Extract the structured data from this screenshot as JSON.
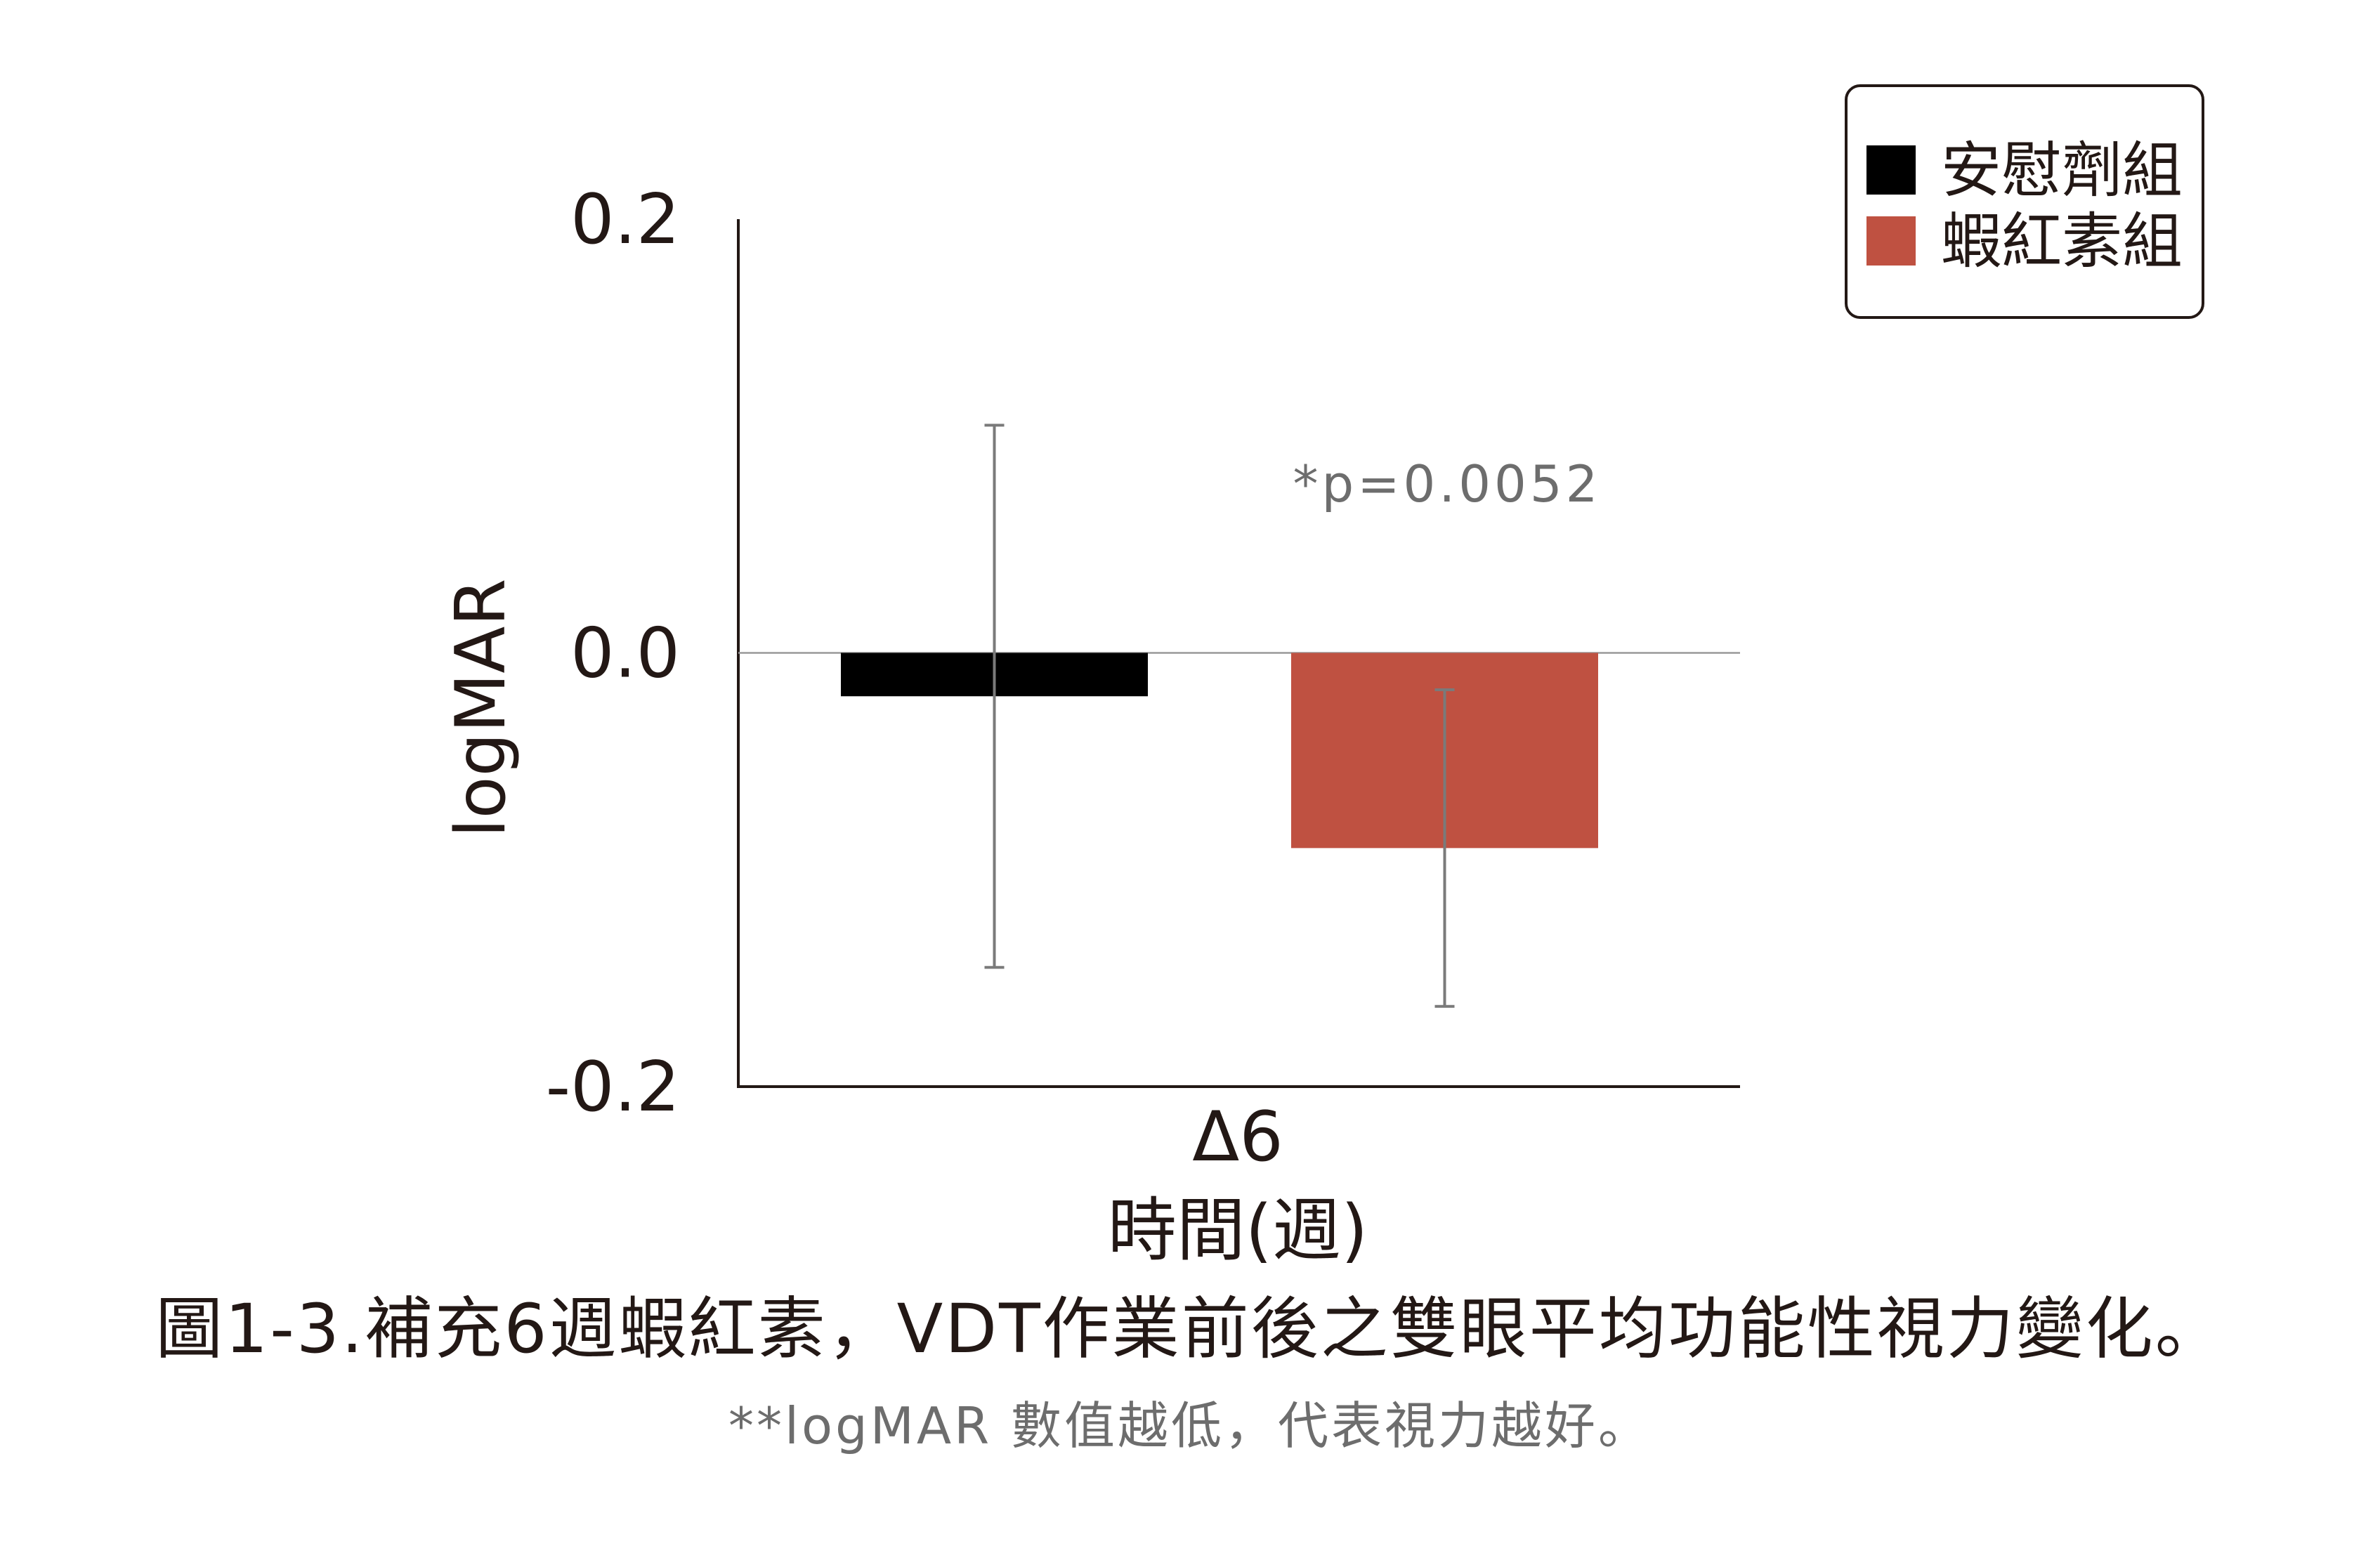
{
  "chart_data": {
    "type": "bar",
    "categories": [
      "Δ6"
    ],
    "series": [
      {
        "name": "安慰劑組",
        "values": [
          -0.02
        ],
        "error": [
          0.125
        ],
        "color": "#000000"
      },
      {
        "name": "蝦紅素組",
        "values": [
          -0.09
        ],
        "error": [
          0.073
        ],
        "color": "#bf5141"
      }
    ],
    "xlabel": "時間(週)",
    "ylabel": "logMAR",
    "ylim": [
      -0.2,
      0.2
    ],
    "yticks": [
      "0.2",
      "0.0",
      "-0.2"
    ],
    "ytick_values": [
      0.2,
      0.0,
      -0.2
    ],
    "grid": false,
    "legend_position": "top-right",
    "annotation": "*p=0.0052"
  },
  "caption": "圖1-3.補充6週蝦紅素，VDT作業前後之雙眼平均功能性視力變化。",
  "footnote": "**logMAR 數值越低，代表視力越好。",
  "colors": {
    "text": "#231815",
    "muted": "#6d6d6d",
    "axis": "#231815",
    "errorbar": "#7a7a7a"
  }
}
